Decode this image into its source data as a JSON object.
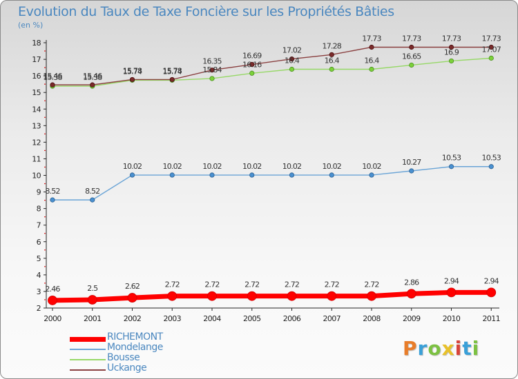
{
  "header": {
    "title": "Evolution du Taux de Taxe Foncière sur les Propriétés Bâties",
    "unit": "(en %)"
  },
  "logo": {
    "text": "Proxiti",
    "colors": [
      "#e87d2a",
      "#3aa0d8",
      "#7cc142",
      "#e8c12a",
      "#d8443a",
      "#3aa0d8",
      "#7cc142"
    ]
  },
  "chart_data": {
    "type": "line",
    "title": "Evolution du Taux de Taxe Foncière sur les Propriétés Bâties",
    "ylabel": "(en %)",
    "xlabel": "",
    "x": [
      "2000",
      "2001",
      "2002",
      "2003",
      "2004",
      "2005",
      "2006",
      "2007",
      "2008",
      "2009",
      "2010",
      "2011"
    ],
    "ylim": [
      2,
      18
    ],
    "yticks": [
      "2",
      "3",
      "4",
      "5",
      "6",
      "7",
      "8",
      "9",
      "10",
      "11",
      "12",
      "13",
      "14",
      "15",
      "16",
      "17",
      "18"
    ],
    "grid": false,
    "legend": "bottom-left",
    "series": [
      {
        "name": "RICHEMONT",
        "color": "#ff0000",
        "values": [
          2.46,
          2.5,
          2.62,
          2.72,
          2.72,
          2.72,
          2.72,
          2.72,
          2.72,
          2.86,
          2.94,
          2.94
        ],
        "labels": [
          "2.46",
          "2.5",
          "2.62",
          "2.72",
          "2.72",
          "2.72",
          "2.72",
          "2.72",
          "2.72",
          "2.86",
          "2.94",
          "2.94"
        ]
      },
      {
        "name": "Mondelange",
        "color": "#4a90d0",
        "values": [
          8.52,
          8.52,
          10.02,
          10.02,
          10.02,
          10.02,
          10.02,
          10.02,
          10.02,
          10.27,
          10.53,
          10.53
        ],
        "labels": [
          "8.52",
          "8.52",
          "10.02",
          "10.02",
          "10.02",
          "10.02",
          "10.02",
          "10.02",
          "10.02",
          "10.27",
          "10.53",
          "10.53"
        ]
      },
      {
        "name": "Bousse",
        "color": "#7cd13a",
        "values": [
          15.38,
          15.38,
          15.74,
          15.74,
          15.84,
          16.16,
          16.4,
          16.4,
          16.4,
          16.65,
          16.9,
          17.07
        ],
        "labels": [
          "15.38",
          "15.38",
          "15.74",
          "15.74",
          "15.84",
          "16.16",
          "16.4",
          "16.4",
          "16.4",
          "16.65",
          "16.9",
          "17.07"
        ]
      },
      {
        "name": "Uckange",
        "color": "#7a2a2a",
        "values": [
          15.46,
          15.46,
          15.78,
          15.78,
          16.35,
          16.69,
          17.02,
          17.28,
          17.73,
          17.73,
          17.73,
          17.73
        ],
        "labels": [
          "15.46",
          "15.46",
          "15.78",
          "15.78",
          "16.35",
          "16.69",
          "17.02",
          "17.28",
          "17.73",
          "17.73",
          "17.73",
          "17.73"
        ]
      }
    ]
  }
}
